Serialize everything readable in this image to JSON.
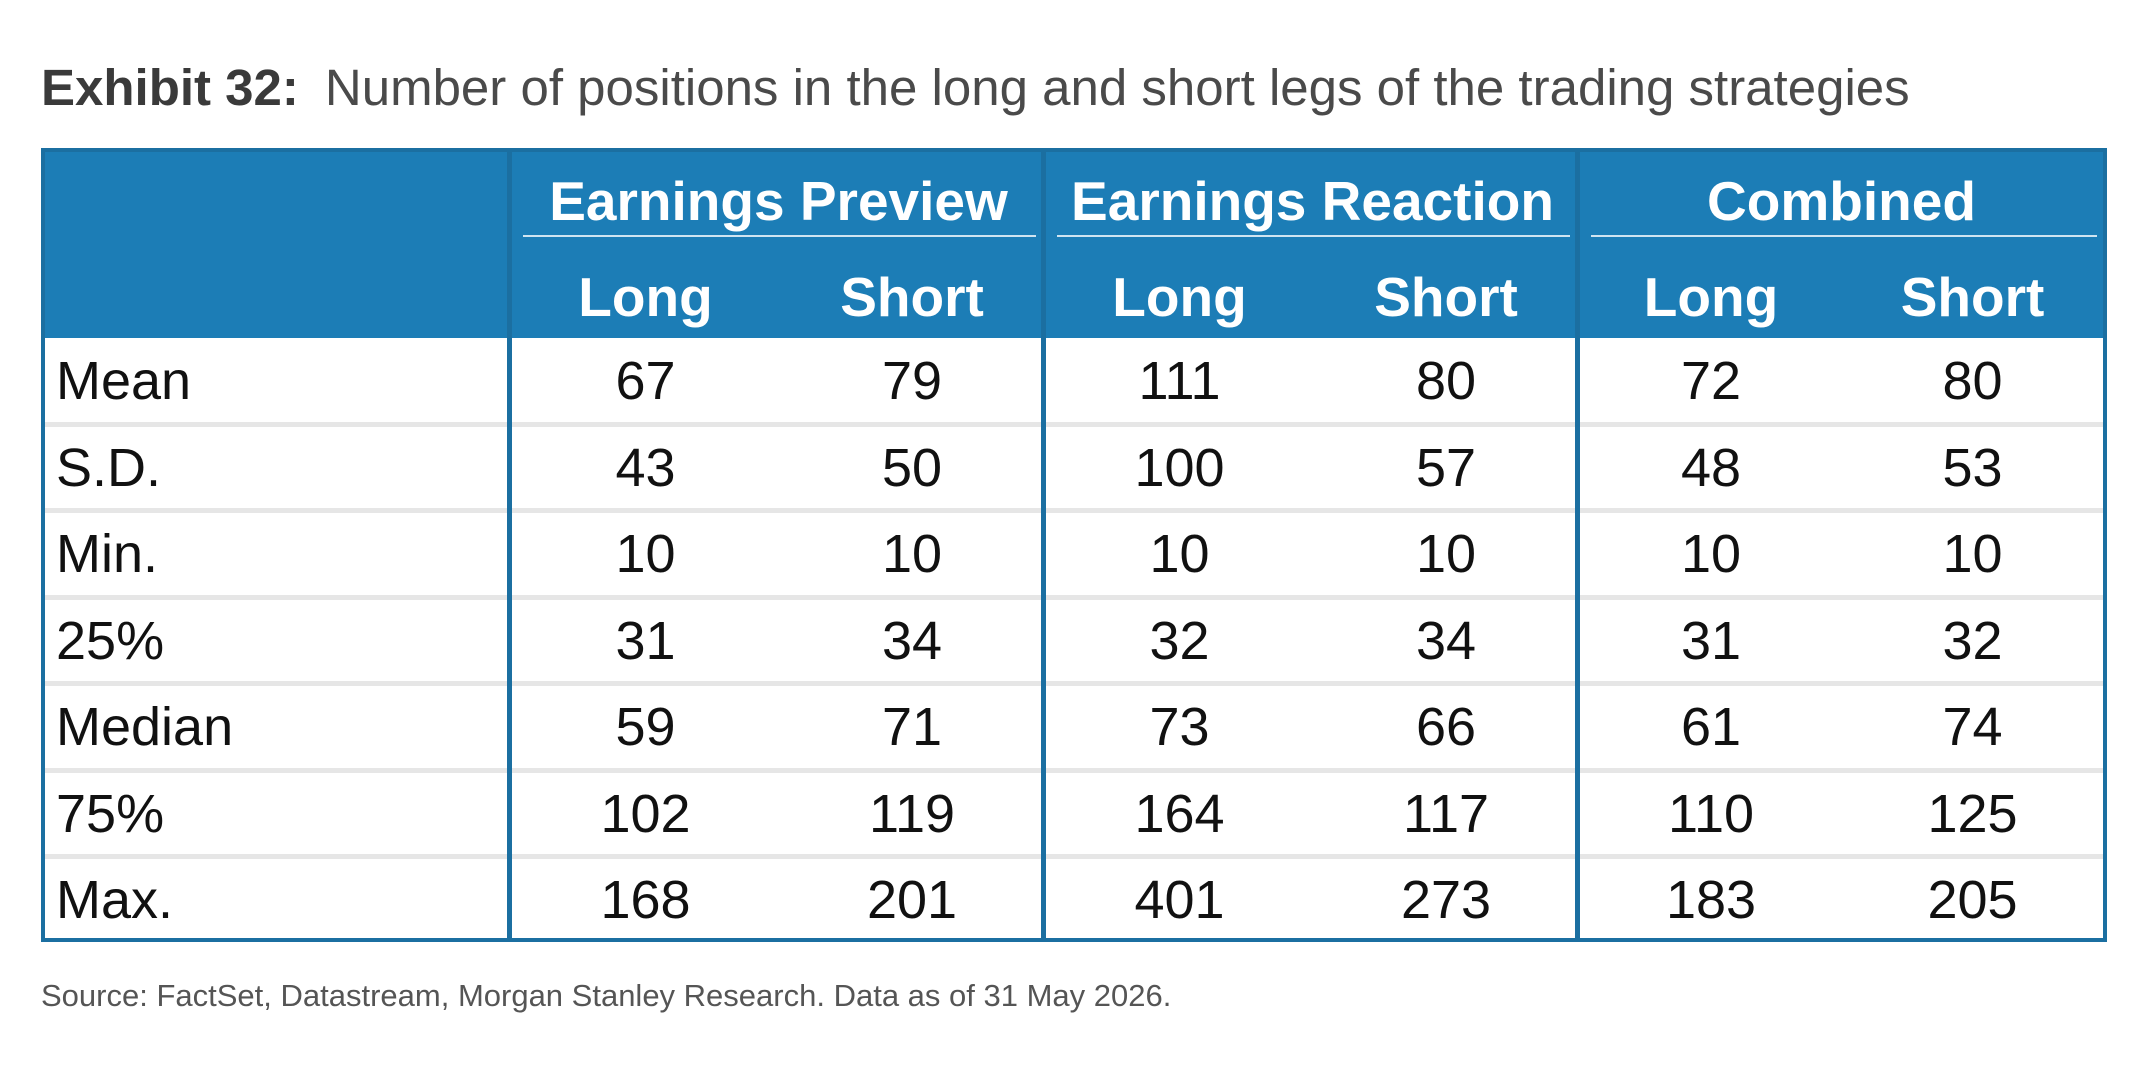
{
  "title": {
    "label": "Exhibit 32:",
    "text": "Number of positions in the long and short legs of the trading strategies"
  },
  "table": {
    "groups": [
      "Earnings Preview",
      "Earnings Reaction",
      "Combined"
    ],
    "subheaders": [
      "Long",
      "Short",
      "Long",
      "Short",
      "Long",
      "Short"
    ],
    "rows": [
      {
        "label": "Mean",
        "values": [
          "67",
          "79",
          "111",
          "80",
          "72",
          "80"
        ]
      },
      {
        "label": "S.D.",
        "values": [
          "43",
          "50",
          "100",
          "57",
          "48",
          "53"
        ]
      },
      {
        "label": "Min.",
        "values": [
          "10",
          "10",
          "10",
          "10",
          "10",
          "10"
        ]
      },
      {
        "label": "25%",
        "values": [
          "31",
          "34",
          "32",
          "34",
          "31",
          "32"
        ]
      },
      {
        "label": "Median",
        "values": [
          "59",
          "71",
          "73",
          "66",
          "61",
          "74"
        ]
      },
      {
        "label": "75%",
        "values": [
          "102",
          "119",
          "164",
          "117",
          "110",
          "125"
        ]
      },
      {
        "label": "Max.",
        "values": [
          "168",
          "201",
          "401",
          "273",
          "183",
          "205"
        ]
      }
    ]
  },
  "source": "Source: FactSet, Datastream, Morgan Stanley Research. Data as of 31 May 2026.",
  "colors": {
    "header_bg": "#1c7db6",
    "border": "#1b6fa1",
    "row_separator": "#e6e6e6"
  }
}
